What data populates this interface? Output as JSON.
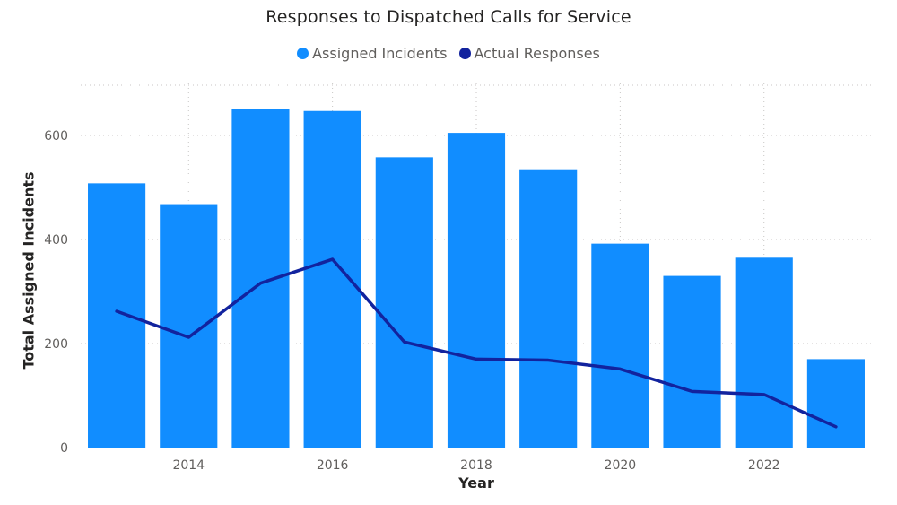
{
  "chart_data": {
    "type": "bar",
    "title": "Responses to Dispatched Calls for Service",
    "xlabel": "Year",
    "ylabel": "Total Assigned Incidents",
    "x": [
      2013,
      2014,
      2015,
      2016,
      2017,
      2018,
      2019,
      2020,
      2021,
      2022,
      2023
    ],
    "x_ticks": [
      "2014",
      "2016",
      "2018",
      "2020",
      "2022"
    ],
    "y_ticks": [
      "0",
      "200",
      "400",
      "600"
    ],
    "ylim": [
      0,
      700
    ],
    "grid": true,
    "legend_position": "top-center",
    "series": [
      {
        "name": "Assigned Incidents",
        "type": "bar",
        "color": "#118DFF",
        "values": [
          508,
          468,
          650,
          647,
          558,
          605,
          535,
          392,
          330,
          365,
          170
        ]
      },
      {
        "name": "Actual Responses",
        "type": "line",
        "color": "#12239E",
        "values": [
          262,
          212,
          316,
          362,
          203,
          170,
          168,
          151,
          108,
          102,
          40
        ]
      }
    ]
  }
}
